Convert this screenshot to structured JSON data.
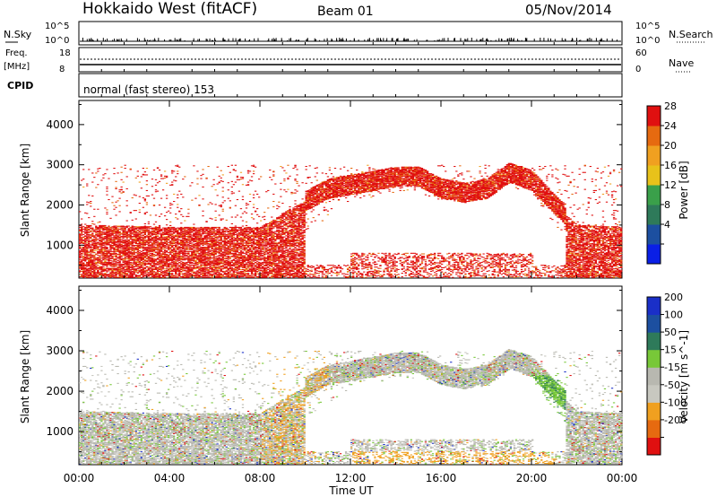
{
  "header": {
    "station": "Hokkaido West (fitACF)",
    "beam": "Beam 01",
    "date": "05/Nov/2014"
  },
  "noise_panel": {
    "left_label": "N.Sky",
    "right_label": "N.Search",
    "left_ticks": [
      "10^5",
      "10^0"
    ],
    "right_ticks": [
      "10^5",
      "10^0"
    ]
  },
  "freq_panel": {
    "left_label_1": "Freq.",
    "left_label_2": "[MHz]",
    "right_label": "Nave",
    "left_ticks": [
      "18",
      "8"
    ],
    "right_ticks": [
      "60",
      "0"
    ]
  },
  "cpid": {
    "label": "CPID",
    "value": "normal (fast stereo) 153"
  },
  "x_axis": {
    "label": "Time UT",
    "ticks": [
      "00:00",
      "04:00",
      "08:00",
      "12:00",
      "16:00",
      "20:00",
      "00:00"
    ]
  },
  "colors": {
    "power": [
      "#0a1fe6",
      "#1c4fa0",
      "#2e7a5a",
      "#3aa04a",
      "#e8c21a",
      "#f0a020",
      "#e66a10",
      "#e01010"
    ],
    "velocity": [
      "#e01010",
      "#e66a10",
      "#f0a020",
      "#c8c8c0",
      "#b8b8b0",
      "#78c838",
      "#2e7a5a",
      "#1c4fa0",
      "#1a2fc8"
    ]
  },
  "chart_data": [
    {
      "type": "heatmap",
      "title": "Power",
      "ylabel": "Slant Range [km]",
      "yticks": [
        "1000",
        "2000",
        "3000",
        "4000"
      ],
      "ylim": [
        180,
        4600
      ],
      "xlim_hours": [
        0,
        24
      ],
      "colorbar_label": "Power [dB]",
      "colorbar_ticks": [
        "28",
        "24",
        "20",
        "16",
        "12",
        "8",
        "4"
      ],
      "features": {
        "main_band_upper_km": [
          [
            0,
            1500
          ],
          [
            4,
            1450
          ],
          [
            8,
            1450
          ],
          [
            9,
            1800
          ],
          [
            10,
            2100
          ],
          [
            11,
            2400
          ],
          [
            12,
            2500
          ],
          [
            14,
            2700
          ],
          [
            15,
            2700
          ],
          [
            16,
            2400
          ],
          [
            17,
            2300
          ],
          [
            18,
            2400
          ],
          [
            19,
            2800
          ],
          [
            20,
            2600
          ],
          [
            21,
            2000
          ],
          [
            22,
            1500
          ],
          [
            24,
            1450
          ]
        ],
        "main_band_lower_km": [
          [
            0,
            600
          ],
          [
            4,
            600
          ],
          [
            8,
            700
          ],
          [
            9,
            1000
          ],
          [
            10,
            1350
          ],
          [
            11,
            1700
          ],
          [
            12,
            2100
          ],
          [
            14,
            2300
          ],
          [
            15,
            2300
          ],
          [
            16,
            2100
          ],
          [
            17,
            2100
          ],
          [
            18,
            2100
          ],
          [
            19,
            2500
          ],
          [
            20,
            2200
          ],
          [
            21,
            1500
          ],
          [
            22,
            700
          ],
          [
            24,
            600
          ]
        ]
      }
    },
    {
      "type": "heatmap",
      "title": "Velocity",
      "ylabel": "Slant Range [km]",
      "yticks": [
        "1000",
        "2000",
        "3000",
        "4000"
      ],
      "ylim": [
        180,
        4600
      ],
      "xlim_hours": [
        0,
        24
      ],
      "colorbar_label": "Velocity [m s^-1]",
      "colorbar_ticks": [
        "200",
        "100",
        "50",
        "15",
        "-15",
        "-50",
        "-100",
        "-200"
      ]
    }
  ]
}
